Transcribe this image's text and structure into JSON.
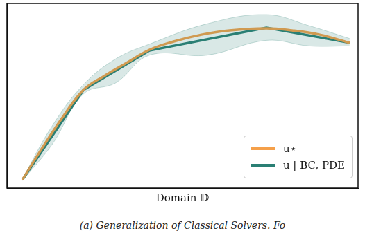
{
  "chart_data": {
    "type": "line",
    "xlabel": "Domain 𝔻",
    "caption": "(a) Generalization of Classical Solvers. Fo",
    "xlim": [
      0,
      1
    ],
    "ylim": [
      0,
      1
    ],
    "tick_labels": false,
    "grid": false,
    "legend": "lower right",
    "series": [
      {
        "name": "u⋆",
        "color": "#f5a04a",
        "line_style": "smooth",
        "x": [
          0.044,
          0.099,
          0.158,
          0.218,
          0.277,
          0.337,
          0.406,
          0.475,
          0.554,
          0.634,
          0.739,
          0.812,
          0.891,
          0.976
        ],
        "values": [
          0.045,
          0.213,
          0.382,
          0.532,
          0.607,
          0.674,
          0.749,
          0.794,
          0.831,
          0.854,
          0.865,
          0.854,
          0.831,
          0.787
        ]
      },
      {
        "name": "u | BC, PDE",
        "color": "#2a7f74",
        "line_style": "straight",
        "x": [
          0.044,
          0.218,
          0.406,
          0.739,
          0.976
        ],
        "values": [
          0.045,
          0.532,
          0.745,
          0.869,
          0.787
        ],
        "band": {
          "x": [
            0.044,
            0.13,
            0.218,
            0.31,
            0.406,
            0.57,
            0.739,
            0.86,
            0.976
          ],
          "lower": [
            0.04,
            0.24,
            0.51,
            0.57,
            0.72,
            0.72,
            0.8,
            0.77,
            0.77
          ],
          "upper": [
            0.05,
            0.34,
            0.56,
            0.7,
            0.78,
            0.89,
            0.94,
            0.88,
            0.81
          ]
        }
      }
    ]
  }
}
